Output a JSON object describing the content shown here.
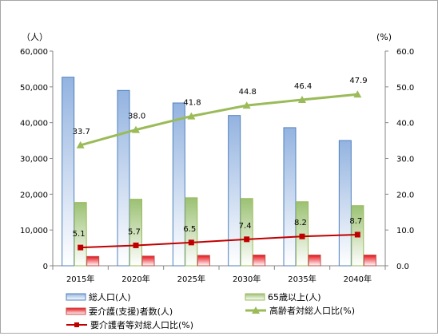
{
  "chart_data": {
    "type": "bar",
    "categories": [
      "2015年",
      "2020年",
      "2025年",
      "2030年",
      "2035年",
      "2040年"
    ],
    "y_left": {
      "unit": "（人）",
      "ylim": [
        0,
        60000
      ],
      "ticks": [
        "0",
        "10,000",
        "20,000",
        "30,000",
        "40,000",
        "50,000",
        "60,000"
      ]
    },
    "y_right": {
      "unit": "(%)",
      "ylim": [
        0,
        60
      ],
      "ticks": [
        "0.0",
        "10.0",
        "20.0",
        "30.0",
        "40.0",
        "50.0",
        "60.0"
      ]
    },
    "grid": false,
    "legend_position": "bottom",
    "series": [
      {
        "name": "総人口(人)",
        "type": "bar",
        "axis": "left",
        "color": "#4f81bd",
        "values": [
          52700,
          49000,
          45500,
          42000,
          38600,
          35000
        ]
      },
      {
        "name": "65歳以上(人)",
        "type": "bar",
        "axis": "left",
        "color": "#9bbb59",
        "values": [
          17700,
          18600,
          19000,
          18800,
          17900,
          16800
        ]
      },
      {
        "name": "要介護(支援)者数(人)",
        "type": "bar",
        "axis": "left",
        "color": "#c0504d",
        "values": [
          2600,
          2700,
          2900,
          3000,
          3000,
          3000
        ]
      },
      {
        "name": "高齢者対総人口比(%)",
        "type": "line",
        "axis": "right",
        "color": "#9bbb59",
        "values": [
          33.7,
          38.0,
          41.8,
          44.8,
          46.4,
          47.9
        ],
        "labels": [
          "33.7",
          "38.0",
          "41.8",
          "44.8",
          "46.4",
          "47.9"
        ]
      },
      {
        "name": "要介護者等対総人口比(%)",
        "type": "line",
        "axis": "right",
        "color": "#c00000",
        "values": [
          5.1,
          5.7,
          6.5,
          7.4,
          8.2,
          8.7
        ],
        "labels": [
          "5.1",
          "5.7",
          "6.5",
          "7.4",
          "8.2",
          "8.7"
        ]
      }
    ]
  }
}
